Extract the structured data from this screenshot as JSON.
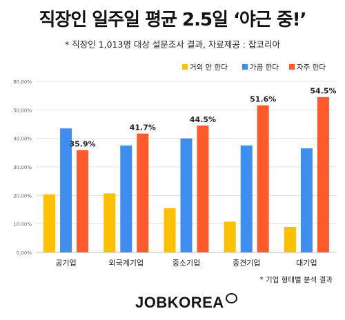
{
  "header": {
    "title": "직장인 일주일 평균 2.5일 ‘야근 중!’",
    "subtitle": "* 직장인 1,013명 대상 설문조사 결과, 자료제공 : 잡코리아"
  },
  "footnote": "* 기업 형태별 분석 결과",
  "logo": {
    "text": "JOBKOREA",
    "icon": "jobkorea-ring-icon"
  },
  "chart_data": {
    "type": "bar",
    "categories": [
      "공기업",
      "외국계기업",
      "중소기업",
      "중견기업",
      "대기업"
    ],
    "series": [
      {
        "name": "거의 안 한다",
        "color": "#FFC000",
        "values": [
          20.4,
          20.7,
          15.5,
          10.8,
          9.0
        ]
      },
      {
        "name": "가끔 한다",
        "color": "#3D8EF0",
        "values": [
          43.5,
          37.5,
          40.0,
          37.5,
          36.5
        ]
      },
      {
        "name": "자주 한다",
        "color": "#FF5A2C",
        "values": [
          35.9,
          41.7,
          44.5,
          51.6,
          54.5
        ]
      }
    ],
    "data_labels": [
      "35.9%",
      "41.7%",
      "44.5%",
      "51.6%",
      "54.5%"
    ],
    "y_ticks": [
      "0.00%",
      "10.00%",
      "20.00%",
      "30.00%",
      "40.00%",
      "50.00%",
      "60.00%"
    ],
    "ylim": [
      0,
      60
    ],
    "grid": true,
    "legend_position": "top-right"
  }
}
